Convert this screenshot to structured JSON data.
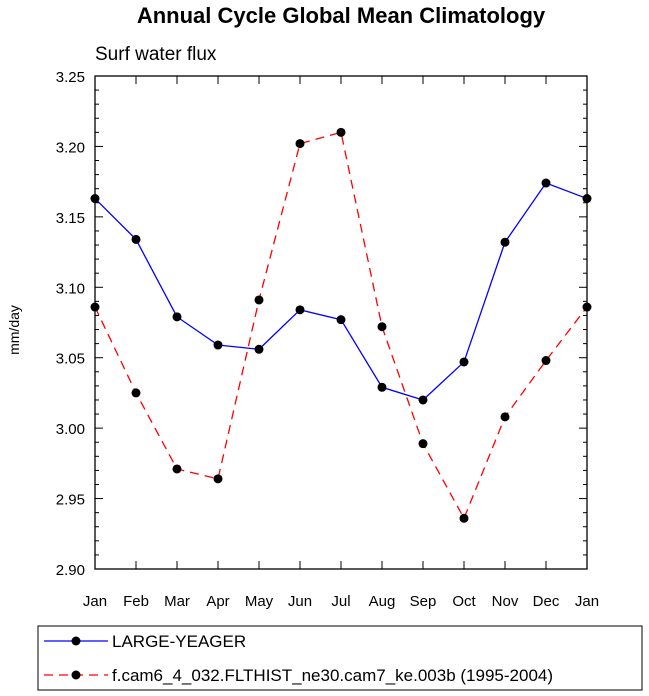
{
  "chart_data": {
    "type": "line",
    "title": "Annual Cycle Global Mean Climatology",
    "subtitle": "Surf water flux",
    "xlabel": "",
    "ylabel": "mm/day",
    "categories": [
      "Jan",
      "Feb",
      "Mar",
      "Apr",
      "May",
      "Jun",
      "Jul",
      "Aug",
      "Sep",
      "Oct",
      "Nov",
      "Dec",
      "Jan"
    ],
    "ylim": [
      2.9,
      3.25
    ],
    "yticks": [
      "2.90",
      "2.95",
      "3.00",
      "3.05",
      "3.10",
      "3.15",
      "3.20",
      "3.25"
    ],
    "grid": false,
    "legend_position": "bottom",
    "series": [
      {
        "name": "LARGE-YEAGER",
        "color": "#0000ff",
        "dash": "solid",
        "values": [
          3.163,
          3.134,
          3.079,
          3.059,
          3.056,
          3.084,
          3.077,
          3.029,
          3.02,
          3.047,
          3.132,
          3.174,
          3.163
        ]
      },
      {
        "name": "f.cam6_4_032.FLTHIST_ne30.cam7_ke.003b (1995-2004)",
        "color": "#ff0000",
        "dash": "dashed",
        "values": [
          3.086,
          3.025,
          2.971,
          2.964,
          3.091,
          3.202,
          3.21,
          3.072,
          2.989,
          2.936,
          3.008,
          3.048,
          3.086
        ]
      }
    ]
  }
}
